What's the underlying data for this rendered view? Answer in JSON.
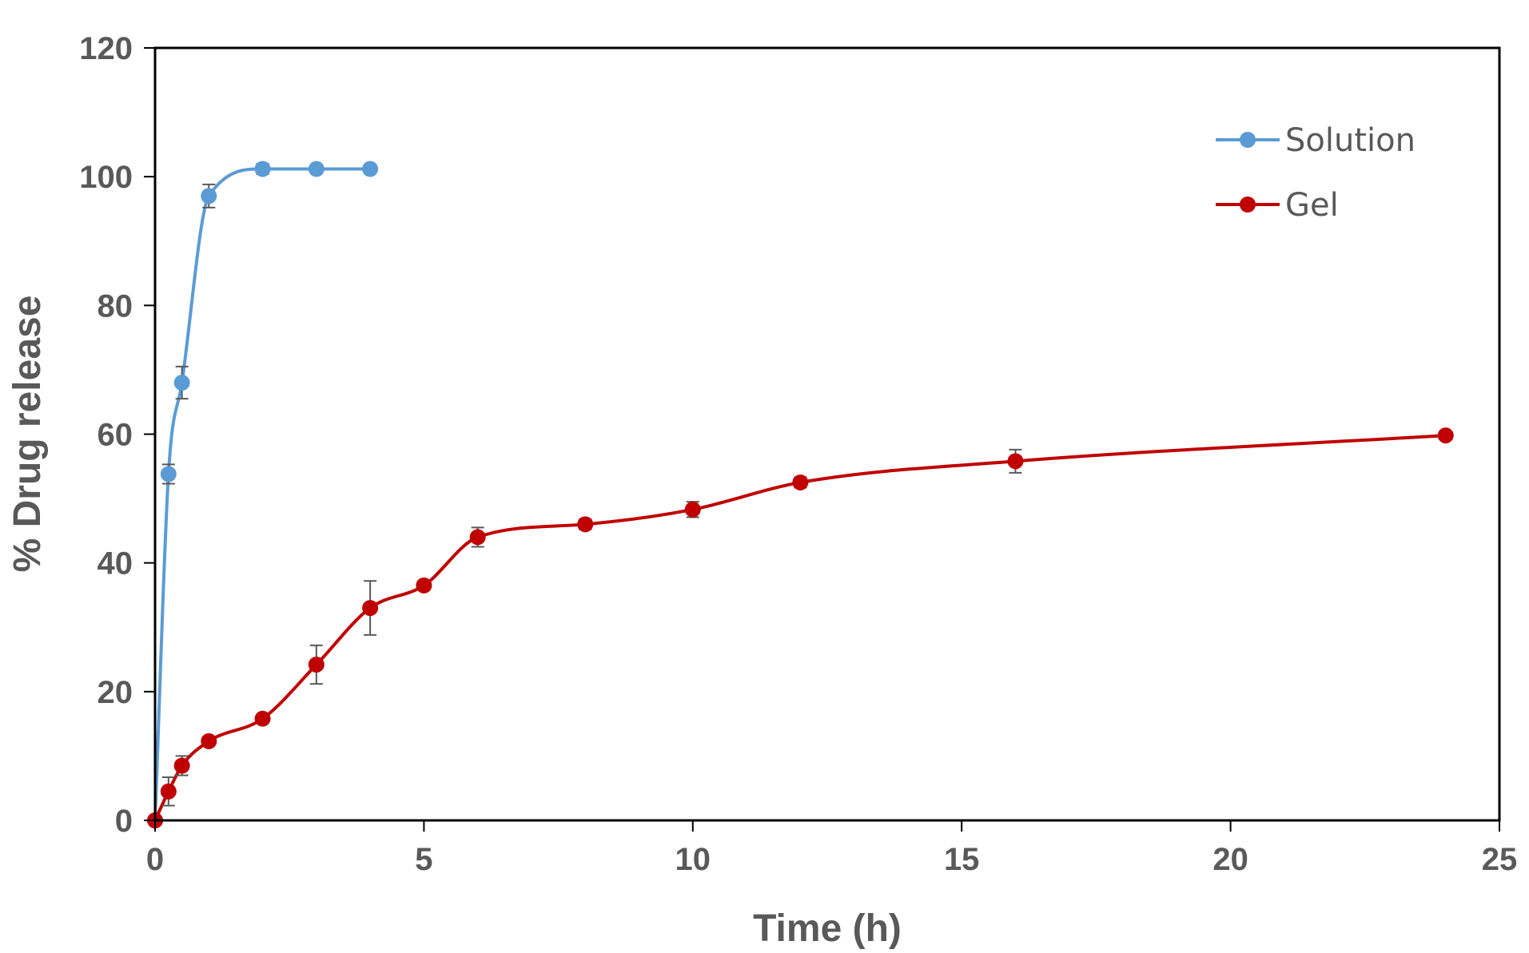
{
  "chart_data": {
    "type": "line",
    "title": "",
    "xlabel": "Time (h)",
    "ylabel": "% Drug release",
    "xlim": [
      0,
      25
    ],
    "ylim": [
      0,
      120
    ],
    "x_ticks": [
      0,
      5,
      10,
      15,
      20,
      25
    ],
    "y_ticks": [
      0,
      20,
      40,
      60,
      80,
      100,
      120
    ],
    "grid": false,
    "legend": "top-right",
    "series": [
      {
        "name": "Solution",
        "color": "#5B9BD5",
        "x": [
          0,
          0.25,
          0.5,
          1,
          2,
          3,
          4
        ],
        "y": [
          0,
          53.8,
          68,
          97,
          101.2,
          101.2,
          101.2
        ],
        "error": [
          0,
          1.5,
          2.5,
          1.8,
          0.8,
          0,
          0
        ]
      },
      {
        "name": "Gel",
        "color": "#C00000",
        "x": [
          0,
          0.25,
          0.5,
          1,
          2,
          3,
          4,
          5,
          6,
          8,
          10,
          12,
          16,
          24
        ],
        "y": [
          0,
          4.5,
          8.5,
          12.3,
          15.8,
          24.2,
          33,
          36.5,
          44,
          46,
          48.3,
          52.5,
          55.8,
          59.8
        ],
        "error": [
          0,
          2.2,
          1.5,
          0.5,
          0.5,
          3,
          4.2,
          0.5,
          1.5,
          0.8,
          1.2,
          0.8,
          1.8,
          0
        ]
      }
    ]
  }
}
